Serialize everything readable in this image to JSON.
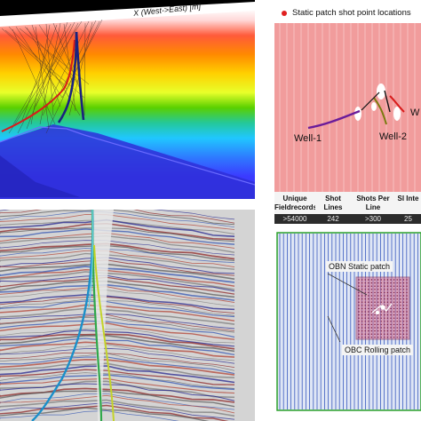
{
  "top_left": {
    "axis_label": "X (West->East) [m]"
  },
  "top_right": {
    "legend": "Static patch shot point locations",
    "wells": [
      "Well-1",
      "Well-2",
      "W"
    ],
    "table": {
      "headers": [
        "Unique Fieldrecords",
        "Shot Lines",
        "Shots Per Line",
        "Sl Inte"
      ],
      "values": [
        ">54000",
        "242",
        ">300",
        "25"
      ]
    }
  },
  "bottom_right": {
    "labels": [
      "OBN Static patch",
      "OBC Rolling patch"
    ]
  },
  "colors": {
    "well_blue": "#1a237e",
    "well_red": "#d81b1b",
    "well_purple": "#6a1b9a",
    "shot_red": "#e02020",
    "grid_blue": "#3a5bbf"
  }
}
